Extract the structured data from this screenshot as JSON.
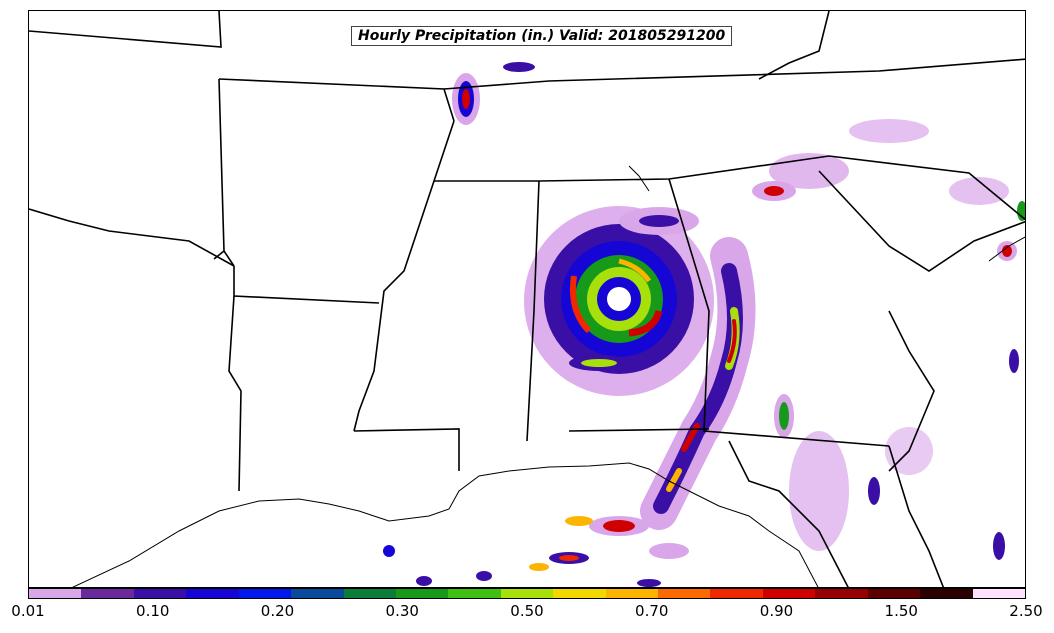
{
  "title": "Hourly Precipitation (in.) Valid: 201805291200",
  "colorbar": {
    "colors": [
      "#d9a6ea",
      "#6a2a9c",
      "#3a0fa6",
      "#1606d6",
      "#0018ec",
      "#0a4a9a",
      "#0c7c3a",
      "#179a1a",
      "#3fc012",
      "#a8e00c",
      "#f3d800",
      "#fbb400",
      "#fa6a00",
      "#f02800",
      "#d00000",
      "#960000",
      "#5a0000",
      "#2a0000",
      "#ffe0ff"
    ],
    "labels": [
      "0.01",
      "0.10",
      "0.20",
      "0.30",
      "0.50",
      "0.70",
      "0.90",
      "1.50",
      "2.50"
    ]
  }
}
